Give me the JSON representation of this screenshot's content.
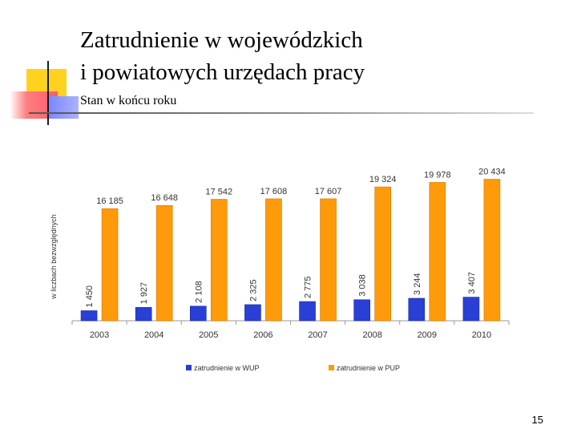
{
  "slide": {
    "title_line1": "Zatrudnienie w wojewódzkich",
    "title_line2": "i powiatowych urzędach pracy",
    "subtitle": "Stan w końcu roku",
    "page_number": "15"
  },
  "colors": {
    "wup": "#2a3fd6",
    "pup": "#ff9a0a",
    "axis": "#9a9a9a",
    "label": "#333333"
  },
  "chart_data": {
    "type": "bar",
    "categories": [
      "2003",
      "2004",
      "2005",
      "2006",
      "2007",
      "2008",
      "2009",
      "2010"
    ],
    "series": [
      {
        "name": "zatrudnienie w WUP",
        "values": [
          1450,
          1927,
          2108,
          2325,
          2775,
          3038,
          3244,
          3407
        ],
        "labels": [
          "1 450",
          "1 927",
          "2 108",
          "2 325",
          "2 775",
          "3 038",
          "3 244",
          "3 407"
        ]
      },
      {
        "name": "zatrudnienie w PUP",
        "values": [
          16185,
          16648,
          17542,
          17608,
          17607,
          19324,
          19978,
          20434
        ],
        "labels": [
          "16 185",
          "16 648",
          "17 542",
          "17 608",
          "17 607",
          "19 324",
          "19 978",
          "20 434"
        ]
      }
    ],
    "ylabel": "w liczbach bezwzględnych",
    "xlabel": "",
    "ylim": [
      0,
      22000
    ],
    "grid": false,
    "legend_position": "bottom"
  }
}
